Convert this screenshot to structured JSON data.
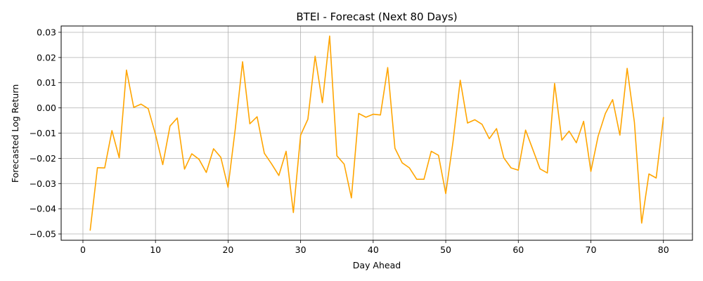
{
  "chart_data": {
    "type": "line",
    "title": "BTEI - Forecast (Next 80 Days)",
    "xlabel": "Day Ahead",
    "ylabel": "Forecasted Log Return",
    "xlim": [
      -3,
      84
    ],
    "ylim": [
      -0.0525,
      0.0325
    ],
    "xticks": [
      0,
      10,
      20,
      30,
      40,
      50,
      60,
      70,
      80
    ],
    "xtick_labels": [
      "0",
      "10",
      "20",
      "30",
      "40",
      "50",
      "60",
      "70",
      "80"
    ],
    "yticks": [
      -0.05,
      -0.04,
      -0.03,
      -0.02,
      -0.01,
      0.0,
      0.01,
      0.02,
      0.03
    ],
    "ytick_labels": [
      "−0.05",
      "−0.04",
      "−0.03",
      "−0.02",
      "−0.01",
      "0.00",
      "0.01",
      "0.02",
      "0.03"
    ],
    "grid": true,
    "series": [
      {
        "color": "#FFA500",
        "x": [
          1,
          2,
          3,
          4,
          5,
          6,
          7,
          8,
          9,
          10,
          11,
          12,
          13,
          14,
          15,
          16,
          17,
          18,
          19,
          20,
          21,
          22,
          23,
          24,
          25,
          26,
          27,
          28,
          29,
          30,
          31,
          32,
          33,
          34,
          35,
          36,
          37,
          38,
          39,
          40,
          41,
          42,
          43,
          44,
          45,
          46,
          47,
          48,
          49,
          50,
          51,
          52,
          53,
          54,
          55,
          56,
          57,
          58,
          59,
          60,
          61,
          62,
          63,
          64,
          65,
          66,
          67,
          68,
          69,
          70,
          71,
          72,
          73,
          74,
          75,
          76,
          77,
          78,
          79,
          80
        ],
        "values": [
          -0.0485,
          -0.0237,
          -0.0238,
          -0.009,
          -0.0198,
          0.015,
          0.0002,
          0.0015,
          -0.0003,
          -0.0105,
          -0.0225,
          -0.0072,
          -0.004,
          -0.0243,
          -0.0182,
          -0.0204,
          -0.0256,
          -0.0162,
          -0.0196,
          -0.0315,
          -0.0082,
          0.0183,
          -0.0063,
          -0.0035,
          -0.018,
          -0.0222,
          -0.0268,
          -0.0172,
          -0.0415,
          -0.0108,
          -0.0045,
          0.0205,
          0.0021,
          0.0285,
          -0.019,
          -0.0223,
          -0.0357,
          -0.0022,
          -0.0037,
          -0.0025,
          -0.0028,
          0.016,
          -0.016,
          -0.0218,
          -0.0238,
          -0.0283,
          -0.0283,
          -0.0172,
          -0.0188,
          -0.034,
          -0.0135,
          0.011,
          -0.006,
          -0.0047,
          -0.0065,
          -0.0122,
          -0.0082,
          -0.0198,
          -0.0238,
          -0.0247,
          -0.0088,
          -0.0165,
          -0.0242,
          -0.0258,
          0.0097,
          -0.0128,
          -0.0092,
          -0.0138,
          -0.0053,
          -0.0252,
          -0.0112,
          -0.0022,
          0.0033,
          -0.0108,
          0.0157,
          -0.0057,
          -0.0457,
          -0.0262,
          -0.0278,
          -0.0038
        ]
      }
    ]
  }
}
